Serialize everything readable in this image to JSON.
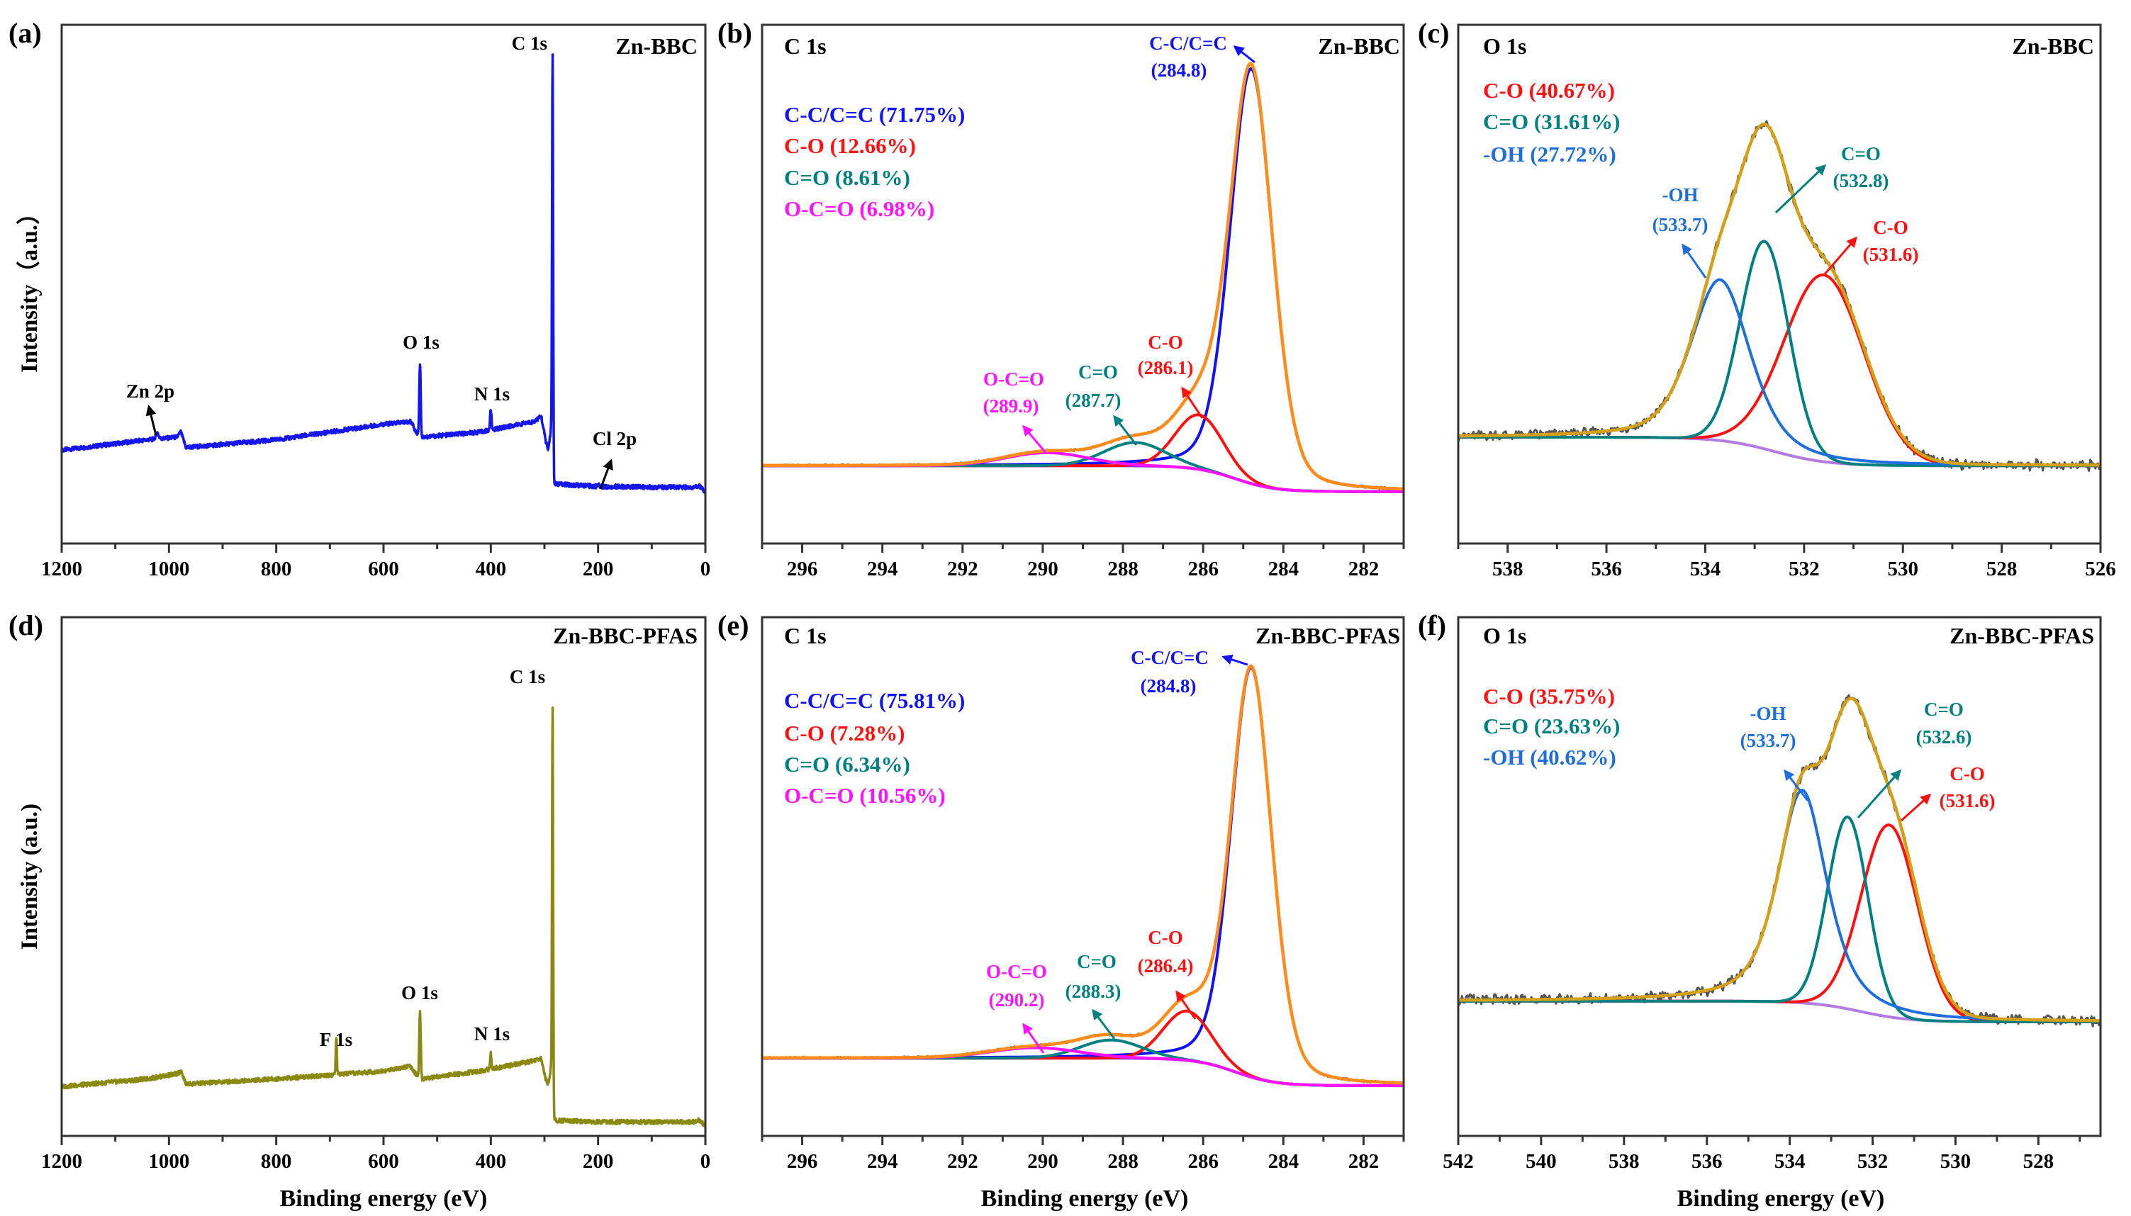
{
  "colors": {
    "survey_a": "#1515ee",
    "survey_d": "#8a8a12",
    "cc": "#1010ff",
    "co": "#ff1010",
    "c_double_o": "#008080",
    "ocdo": "#ff10ff",
    "oh": "#1e6fdc",
    "bg_c": "#8a2be2",
    "bg_o": "#b27be0",
    "env_c": "#ff8c1a",
    "env_o": "#d4a017",
    "raw": "#555555"
  },
  "chart_data": [
    {
      "panel": "(a)",
      "type": "line",
      "subtype": "survey",
      "sample": "Zn-BBC",
      "xlabel": "",
      "ylabel": "Intensity（a.u.）",
      "xlim": [
        1200,
        0
      ],
      "xticks": [
        1200,
        1000,
        800,
        600,
        400,
        200,
        0
      ],
      "ylim": [
        0,
        1
      ],
      "color_key": "survey_a",
      "background": [
        [
          1200,
          0.18
        ],
        [
          1040,
          0.2
        ],
        [
          985,
          0.205
        ],
        [
          978,
          0.215
        ],
        [
          968,
          0.185
        ],
        [
          800,
          0.2
        ],
        [
          600,
          0.23
        ],
        [
          548,
          0.235
        ],
        [
          540,
          0.215
        ],
        [
          528,
          0.205
        ],
        [
          420,
          0.215
        ],
        [
          320,
          0.235
        ],
        [
          306,
          0.245
        ],
        [
          298,
          0.2
        ],
        [
          293,
          0.18
        ],
        [
          288,
          0.22
        ],
        [
          283,
          0.115
        ],
        [
          200,
          0.11
        ],
        [
          20,
          0.108
        ],
        [
          12,
          0.112
        ],
        [
          0,
          0.1
        ]
      ],
      "peaks": [
        {
          "label": "C 1s",
          "center": 284.8,
          "amp": 0.8,
          "fwhm": 2.4
        },
        {
          "label": "O 1s",
          "center": 532,
          "amp": 0.14,
          "fwhm": 3
        },
        {
          "label": "N 1s",
          "center": 400,
          "amp": 0.04,
          "fwhm": 3
        },
        {
          "label": "Zn 2p",
          "center": 1022,
          "amp": 0.012,
          "fwhm": 6
        },
        {
          "label": "Cl 2p",
          "center": 200,
          "amp": 0.004,
          "fwhm": 4
        }
      ]
    },
    {
      "panel": "(b)",
      "type": "line",
      "subtype": "fit",
      "region": "C 1s",
      "sample": "Zn-BBC",
      "xlabel": "",
      "xlim": [
        297,
        281
      ],
      "xticks": [
        296,
        294,
        292,
        290,
        288,
        286,
        284,
        282
      ],
      "ylim": [
        0,
        1
      ],
      "background": {
        "high": 0.15,
        "low": 0.1,
        "center": 285.2,
        "width": 0.5
      },
      "envelope_key": "env_c",
      "bg_key": "bg_c",
      "noise": 0.002,
      "components": [
        {
          "name": "C-C/C=C",
          "center": 284.8,
          "percent": 71.75,
          "amp": 0.8,
          "fwhm": 1.25,
          "lorentz": 0.25,
          "color_key": "cc",
          "legend": "C-C/C=C (71.75%)",
          "label": "C-C/C=C",
          "position_label": "(284.8)"
        },
        {
          "name": "C-O",
          "center": 286.1,
          "percent": 12.66,
          "amp": 0.105,
          "fwhm": 1.4,
          "lorentz": 0,
          "color_key": "co",
          "legend": "C-O (12.66%)",
          "label": "C-O",
          "position_label": "(286.1)"
        },
        {
          "name": "C=O",
          "center": 287.7,
          "percent": 8.61,
          "amp": 0.045,
          "fwhm": 1.8,
          "lorentz": 0,
          "color_key": "c_double_o",
          "legend": "C=O (8.61%)",
          "label": "C=O",
          "position_label": "(287.7)"
        },
        {
          "name": "O-C=O",
          "center": 289.9,
          "percent": 6.98,
          "amp": 0.025,
          "fwhm": 2.4,
          "lorentz": 0,
          "color_key": "ocdo",
          "legend": "O-C=O (6.98%)",
          "label": "O-C=O",
          "position_label": "(289.9)"
        }
      ]
    },
    {
      "panel": "(c)",
      "type": "line",
      "subtype": "fit",
      "region": "O 1s",
      "sample": "Zn-BBC",
      "xlabel": "",
      "xlim": [
        539,
        526
      ],
      "xticks": [
        538,
        536,
        534,
        532,
        530,
        528,
        526
      ],
      "ylim": [
        0,
        1
      ],
      "background": {
        "high": 0.205,
        "low": 0.15,
        "center": 532.6,
        "width": 0.55
      },
      "envelope_key": "env_o",
      "bg_key": "bg_o",
      "noise": 0.008,
      "components": [
        {
          "name": "C-O",
          "center": 531.6,
          "percent": 40.67,
          "amp": 0.36,
          "fwhm": 1.9,
          "lorentz": 0,
          "color_key": "co",
          "legend": "C-O (40.67%)",
          "label": "C-O",
          "position_label": "(531.6)"
        },
        {
          "name": "C=O",
          "center": 532.8,
          "percent": 31.61,
          "amp": 0.4,
          "fwhm": 1.15,
          "lorentz": 0,
          "color_key": "c_double_o",
          "legend": "C=O (31.61%)",
          "label": "C=O",
          "position_label": "(532.8)"
        },
        {
          "name": "-OH",
          "center": 533.7,
          "percent": 27.72,
          "amp": 0.31,
          "fwhm": 1.4,
          "lorentz": 0.45,
          "color_key": "oh",
          "legend": "-OH (27.72%)",
          "label": "-OH",
          "position_label": "(533.7)"
        }
      ]
    },
    {
      "panel": "(d)",
      "type": "line",
      "subtype": "survey",
      "sample": "Zn-BBC-PFAS",
      "xlabel": "Binding energy (eV)",
      "ylabel": "Intensity (a.u.)",
      "xlim": [
        1200,
        0
      ],
      "xticks": [
        1200,
        1000,
        800,
        600,
        400,
        200,
        0
      ],
      "ylim": [
        0,
        1
      ],
      "color_key": "survey_d",
      "background": [
        [
          1200,
          0.095
        ],
        [
          1040,
          0.11
        ],
        [
          985,
          0.12
        ],
        [
          978,
          0.125
        ],
        [
          968,
          0.1
        ],
        [
          800,
          0.11
        ],
        [
          600,
          0.125
        ],
        [
          552,
          0.135
        ],
        [
          540,
          0.12
        ],
        [
          528,
          0.11
        ],
        [
          420,
          0.125
        ],
        [
          320,
          0.145
        ],
        [
          306,
          0.15
        ],
        [
          298,
          0.11
        ],
        [
          293,
          0.1
        ],
        [
          288,
          0.13
        ],
        [
          283,
          0.03
        ],
        [
          200,
          0.027
        ],
        [
          20,
          0.027
        ],
        [
          12,
          0.03
        ],
        [
          0,
          0.02
        ]
      ],
      "peaks": [
        {
          "label": "C 1s",
          "center": 284.8,
          "amp": 0.77,
          "fwhm": 2.4
        },
        {
          "label": "O 1s",
          "center": 532,
          "amp": 0.125,
          "fwhm": 3
        },
        {
          "label": "F 1s",
          "center": 688,
          "amp": 0.07,
          "fwhm": 2.5
        },
        {
          "label": "N 1s",
          "center": 400,
          "amp": 0.03,
          "fwhm": 3
        }
      ]
    },
    {
      "panel": "(e)",
      "type": "line",
      "subtype": "fit",
      "region": "C 1s",
      "sample": "Zn-BBC-PFAS",
      "xlabel": "Binding energy (eV)",
      "xlim": [
        297,
        281
      ],
      "xticks": [
        296,
        294,
        292,
        290,
        288,
        286,
        284,
        282
      ],
      "ylim": [
        0,
        1
      ],
      "background": {
        "high": 0.15,
        "low": 0.097,
        "center": 285.2,
        "width": 0.5
      },
      "envelope_key": "env_c",
      "bg_key": "bg_c",
      "noise": 0.002,
      "components": [
        {
          "name": "C-C/C=C",
          "center": 284.8,
          "percent": 75.81,
          "amp": 0.79,
          "fwhm": 1.2,
          "lorentz": 0.25,
          "color_key": "cc",
          "legend": "C-C/C=C (75.81%)",
          "label": "C-C/C=C",
          "position_label": "(284.8)"
        },
        {
          "name": "C-O",
          "center": 286.4,
          "percent": 7.28,
          "amp": 0.095,
          "fwhm": 1.4,
          "lorentz": 0,
          "color_key": "co",
          "legend": "C-O (7.28%)",
          "label": "C-O",
          "position_label": "(286.4)"
        },
        {
          "name": "C=O",
          "center": 288.3,
          "percent": 6.34,
          "amp": 0.035,
          "fwhm": 1.8,
          "lorentz": 0,
          "color_key": "c_double_o",
          "legend": "C=O (6.34%)",
          "label": "C=O",
          "position_label": "(288.3)"
        },
        {
          "name": "O-C=O",
          "center": 290.2,
          "percent": 10.56,
          "amp": 0.02,
          "fwhm": 2.6,
          "lorentz": 0,
          "color_key": "ocdo",
          "legend": "O-C=O (10.56%)",
          "label": "O-C=O",
          "position_label": "(290.2)"
        }
      ]
    },
    {
      "panel": "(f)",
      "type": "line",
      "subtype": "fit",
      "region": "O 1s",
      "sample": "Zn-BBC-PFAS",
      "xlabel": "Binding energy (eV)",
      "xlim": [
        542,
        526.5
      ],
      "xticks": [
        542,
        540,
        538,
        536,
        534,
        532,
        530,
        528
      ],
      "ylim": [
        0,
        1
      ],
      "background": {
        "high": 0.26,
        "low": 0.22,
        "center": 532.3,
        "width": 0.6
      },
      "envelope_key": "env_o",
      "bg_key": "bg_o",
      "noise": 0.008,
      "components": [
        {
          "name": "C-O",
          "center": 531.6,
          "percent": 35.75,
          "amp": 0.37,
          "fwhm": 1.6,
          "lorentz": 0,
          "color_key": "co",
          "legend": "C-O (35.75%)",
          "label": "C-O",
          "position_label": "(531.6)"
        },
        {
          "name": "C=O",
          "center": 532.6,
          "percent": 23.63,
          "amp": 0.37,
          "fwhm": 1.15,
          "lorentz": 0,
          "color_key": "c_double_o",
          "legend": "C=O (23.63%)",
          "label": "C=O",
          "position_label": "(532.6)"
        },
        {
          "name": "-OH",
          "center": 533.7,
          "percent": 40.62,
          "amp": 0.41,
          "fwhm": 1.4,
          "lorentz": 0.6,
          "color_key": "oh",
          "legend": "-OH (40.62%)",
          "label": "-OH",
          "position_label": "(533.7)"
        }
      ]
    }
  ]
}
